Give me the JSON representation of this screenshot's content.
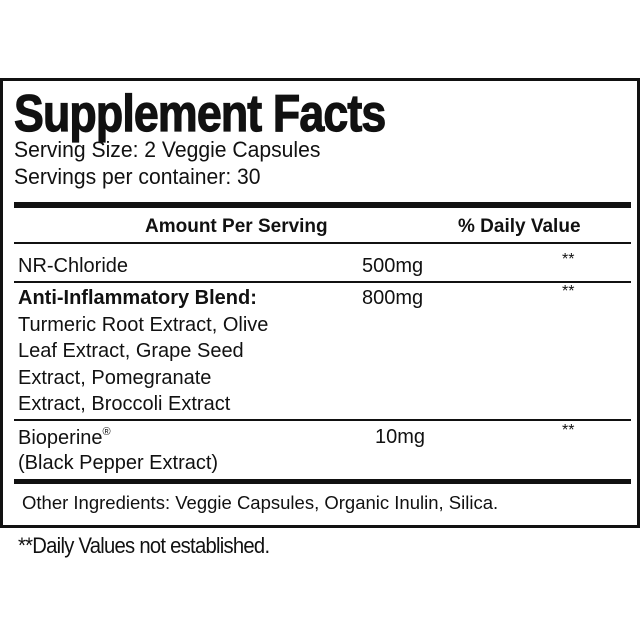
{
  "label": {
    "title": "Supplement Facts",
    "serving_size": "Serving Size: 2 Veggie Capsules",
    "servings_per_container": "Servings per container: 30",
    "header": {
      "amount": "Amount Per Serving",
      "daily_value": "% Daily Value"
    },
    "rows": [
      {
        "name": "NR-Chloride",
        "amount": "500mg",
        "dv": "**"
      },
      {
        "name": "Anti-Inflammatory Blend:",
        "amount": "800mg",
        "dv": "**",
        "sub_lines": [
          "Turmeric Root Extract, Olive",
          "Leaf Extract, Grape Seed",
          "Extract, Pomegranate",
          "Extract, Broccoli Extract"
        ]
      },
      {
        "name": "Bioperine",
        "mark": "®",
        "sub": "(Black Pepper Extract)",
        "amount": "10mg",
        "dv": "**"
      }
    ],
    "other_ingredients": "Other Ingredients: Veggie Capsules, Organic Inulin, Silica.",
    "footnote": "**Daily Values not established."
  }
}
